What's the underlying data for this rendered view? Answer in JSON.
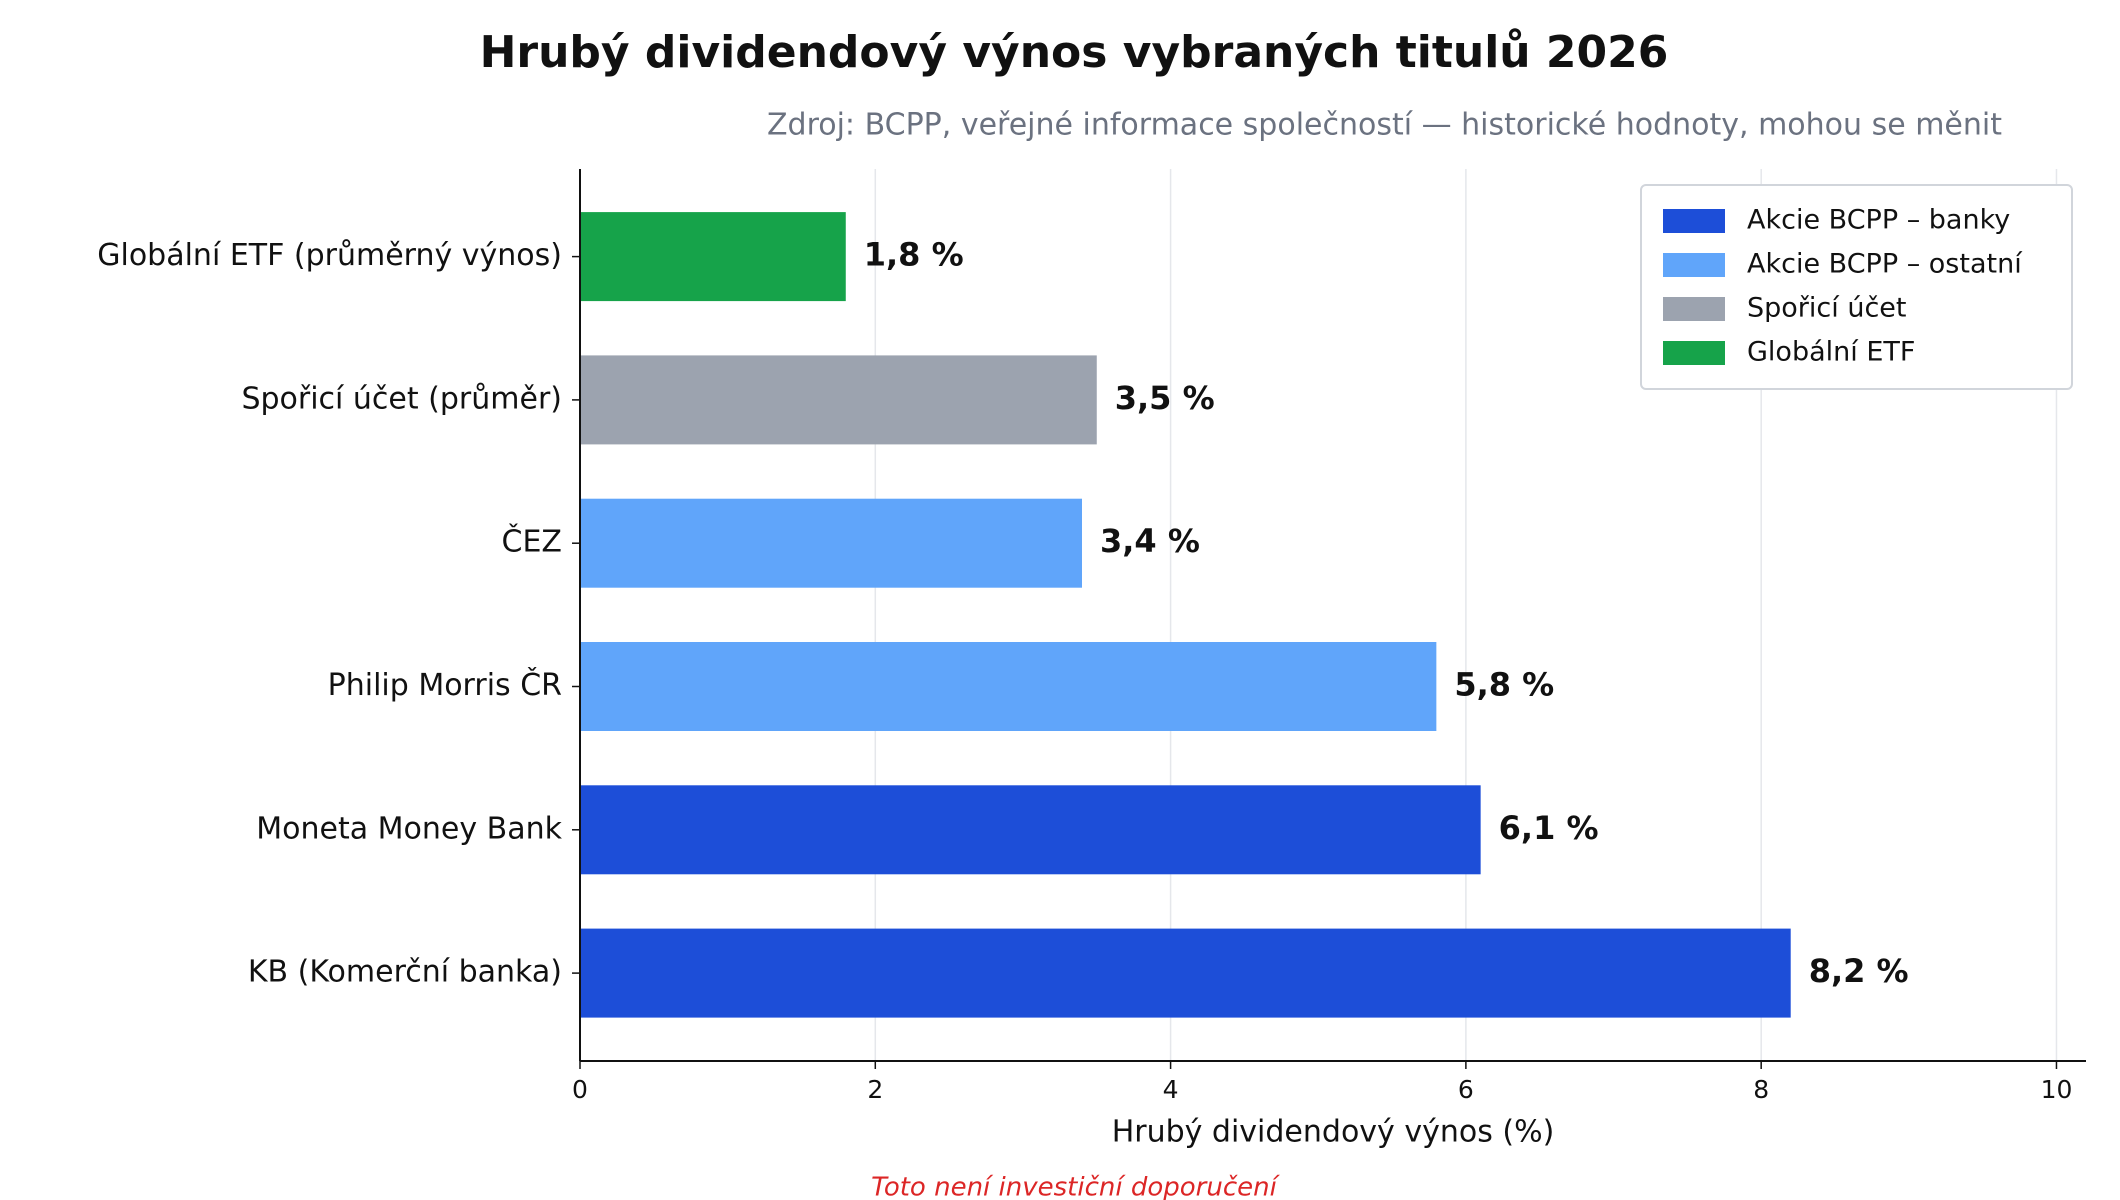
{
  "chart_data": {
    "type": "barh",
    "title": "Hrubý dividendový výnos vybraných titulů 2026",
    "subtitle": "Zdroj: BCPP, veřejné informace společností — historické hodnoty, mohou se měnit",
    "x_label": "Hrubý dividendový výnos (%)",
    "footnote": "Toto není investiční doporučení",
    "categories": [
      "Globální ETF (průměrný výnos)",
      "Spořicí účet (průměr)",
      "ČEZ",
      "Philip Morris ČR",
      "Moneta Money Bank",
      "KB (Komerční banka)"
    ],
    "values": [
      1.8,
      3.5,
      3.4,
      5.8,
      6.1,
      8.2
    ],
    "value_labels": [
      "1,8 %",
      "3,5 %",
      "3,4 %",
      "5,8 %",
      "6,1 %",
      "8,2 %"
    ],
    "colors": [
      "#16a34a",
      "#9ca3af",
      "#60a5fa",
      "#60a5fa",
      "#1d4ed8",
      "#1d4ed8"
    ],
    "legend": [
      {
        "name": "Akcie BCPP – banky",
        "color": "#1d4ed8"
      },
      {
        "name": "Akcie BCPP – ostatní",
        "color": "#60a5fa"
      },
      {
        "name": "Spořicí účet",
        "color": "#9ca3af"
      },
      {
        "name": "Globální ETF",
        "color": "#16a34a"
      }
    ],
    "legend_position": "upper right",
    "xlim": [
      0,
      10.2
    ],
    "xticks": [
      0,
      2,
      4,
      6,
      8,
      10
    ],
    "grid": true
  }
}
